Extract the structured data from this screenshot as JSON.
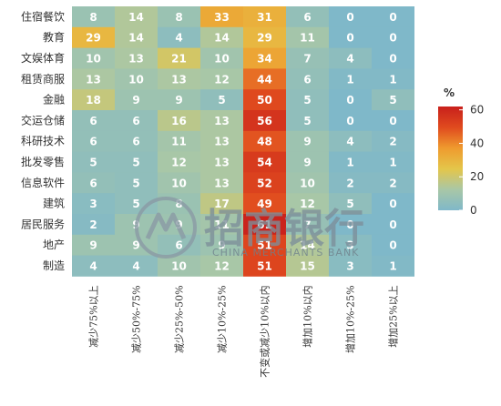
{
  "chart_data": {
    "type": "heatmap",
    "rows": [
      "住宿餐饮",
      "教育",
      "文娱体育",
      "租赁商服",
      "金融",
      "交运仓储",
      "科研技术",
      "批发零售",
      "信息软件",
      "建筑",
      "居民服务",
      "地产",
      "制造"
    ],
    "columns": [
      "减少75%以上",
      "减少50%-75%",
      "减少25%-50%",
      "减少10%-25%",
      "不变或减少10%以内",
      "增加10%以内",
      "增加10%-25%",
      "增加25%以上"
    ],
    "values": [
      [
        8,
        14,
        8,
        33,
        31,
        6,
        0,
        0
      ],
      [
        29,
        14,
        4,
        14,
        29,
        11,
        0,
        0
      ],
      [
        10,
        13,
        21,
        10,
        34,
        7,
        4,
        0
      ],
      [
        13,
        10,
        13,
        12,
        44,
        6,
        1,
        1
      ],
      [
        18,
        9,
        9,
        5,
        50,
        5,
        0,
        5
      ],
      [
        6,
        6,
        16,
        13,
        56,
        5,
        0,
        0
      ],
      [
        6,
        6,
        11,
        13,
        48,
        9,
        4,
        2
      ],
      [
        5,
        5,
        12,
        13,
        54,
        9,
        1,
        1
      ],
      [
        6,
        5,
        10,
        13,
        52,
        10,
        2,
        2
      ],
      [
        3,
        5,
        8,
        17,
        49,
        12,
        5,
        0
      ],
      [
        2,
        9,
        9,
        11,
        61,
        7,
        0,
        0
      ],
      [
        9,
        9,
        6,
        9,
        51,
        14,
        3,
        0
      ],
      [
        4,
        4,
        10,
        12,
        51,
        15,
        3,
        1
      ]
    ],
    "legend": {
      "unit": "%",
      "ticks": [
        0,
        20,
        40,
        60
      ],
      "range": [
        0,
        62
      ],
      "colors": [
        "#7fb8c9",
        "#a9c7a6",
        "#e4c64a",
        "#ef9a2e",
        "#e04a1e",
        "#c8201c"
      ]
    }
  },
  "watermark": {
    "text_cn": "招商银行",
    "text_en": "CHINA MERCHANTS BANK"
  }
}
